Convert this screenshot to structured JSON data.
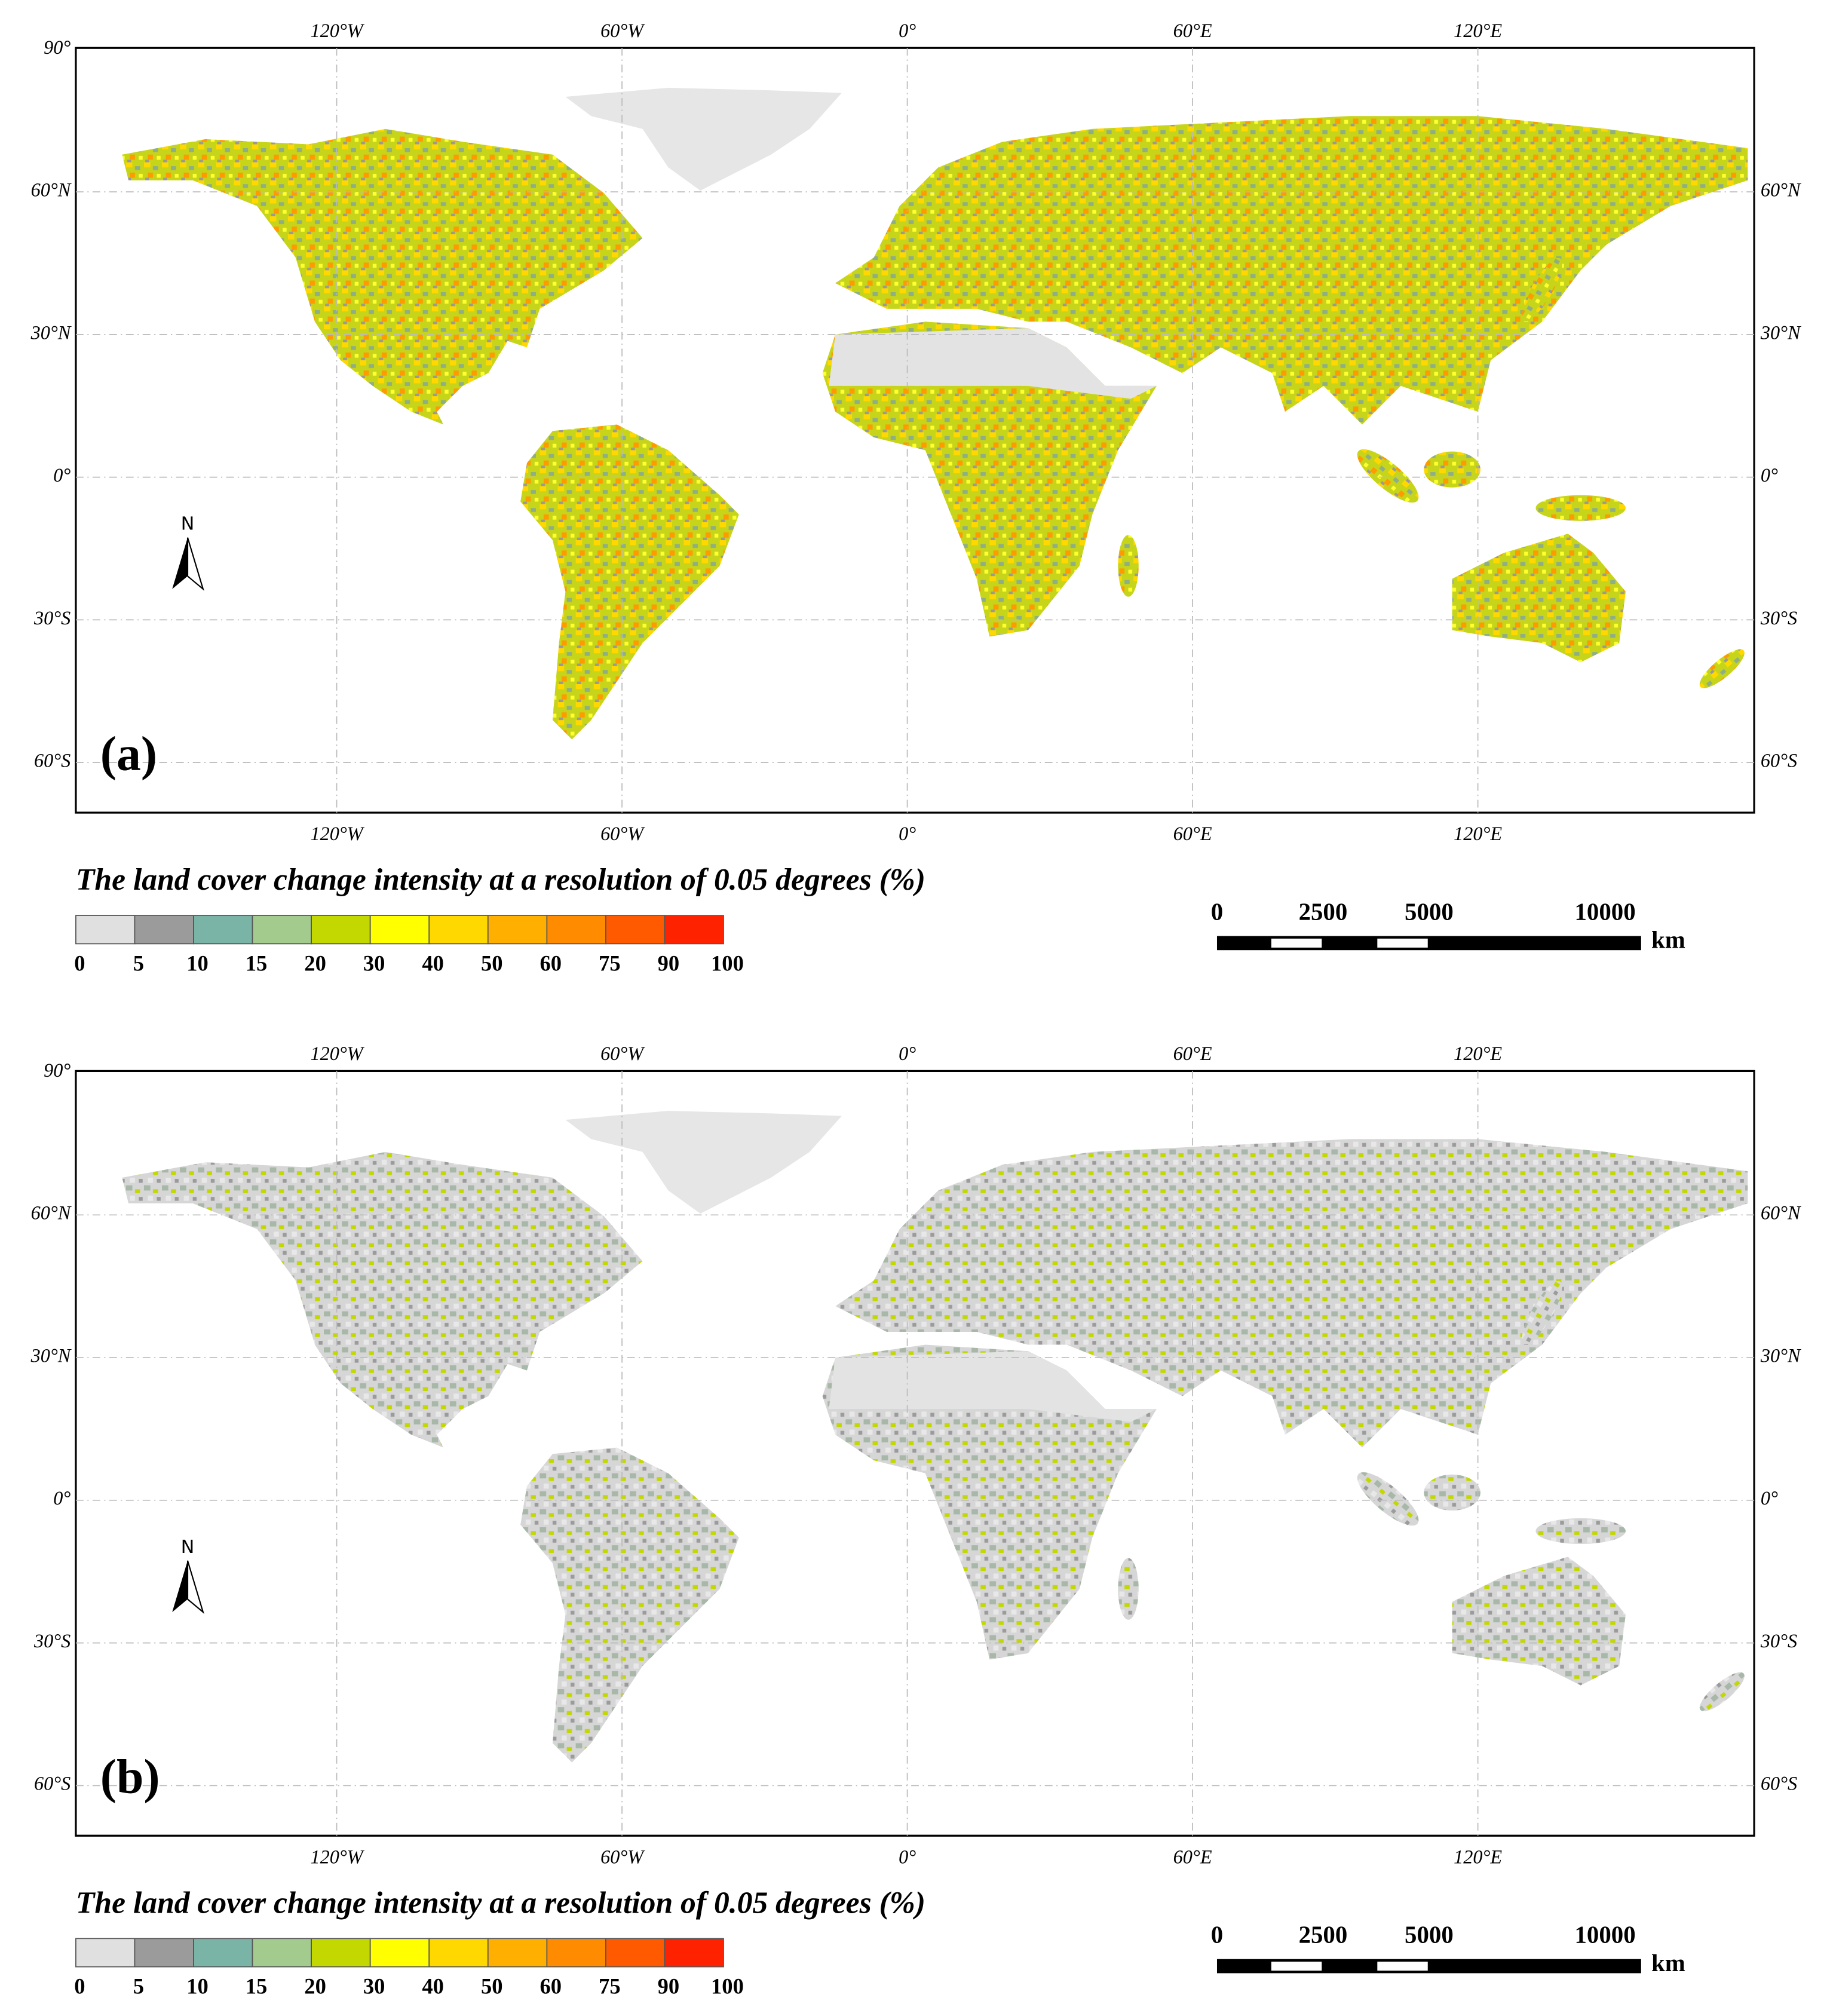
{
  "panels": [
    {
      "label": "(a)",
      "legend_title": "The land cover change intensity at a resolution of 0.05 degrees (%)"
    },
    {
      "label": "(b)",
      "legend_title": "The land cover change intensity at a resolution of 0.05 degrees (%)"
    }
  ],
  "lon_ticks": [
    {
      "value": -120,
      "label": "120°W"
    },
    {
      "value": -60,
      "label": "60°W"
    },
    {
      "value": 0,
      "label": "0°"
    },
    {
      "value": 60,
      "label": "60°E"
    },
    {
      "value": 120,
      "label": "120°E"
    }
  ],
  "lat_ticks": [
    {
      "value": 90,
      "label": "90°"
    },
    {
      "value": 60,
      "label": "60°N"
    },
    {
      "value": 30,
      "label": "30°N"
    },
    {
      "value": 0,
      "label": "0°"
    },
    {
      "value": -30,
      "label": "30°S"
    },
    {
      "value": -60,
      "label": "60°S"
    }
  ],
  "legend": {
    "breaks": [
      0,
      5,
      10,
      15,
      20,
      30,
      40,
      50,
      60,
      75,
      90,
      100
    ],
    "colors": [
      "#e0e0e0",
      "#9b9b9b",
      "#79b4a6",
      "#a3cb8e",
      "#c3d800",
      "#ffff00",
      "#ffd800",
      "#ffaf00",
      "#ff8c00",
      "#ff5a00",
      "#ff2200"
    ]
  },
  "scale_bar": {
    "ticks": [
      0,
      2500,
      5000,
      10000
    ],
    "unit": "km"
  },
  "north": "N"
}
